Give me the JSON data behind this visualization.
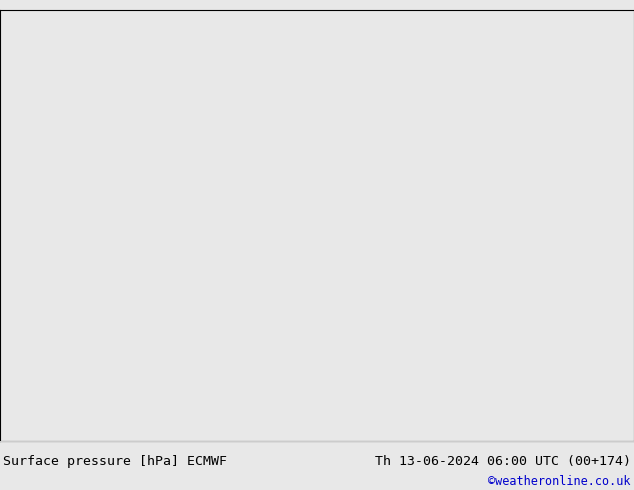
{
  "title_left": "Surface pressure [hPa] ECMWF",
  "title_right": "Th 13-06-2024 06:00 UTC (00+174)",
  "credit": "©weatheronline.co.uk",
  "land_color": "#b3f0a0",
  "ocean_color": "#e8e8e8",
  "coastline_color": "#888888",
  "border_color": "#888888",
  "background_color": "#e8e8e8",
  "text_color_black": "#000000",
  "text_color_blue": "#0000cc",
  "extent": [
    90,
    155,
    -15,
    50
  ],
  "figsize": [
    6.34,
    4.9
  ],
  "dpi": 100,
  "bottom_bar_color": "#f0f0f0",
  "title_fontsize": 9.5,
  "credit_fontsize": 8.5
}
